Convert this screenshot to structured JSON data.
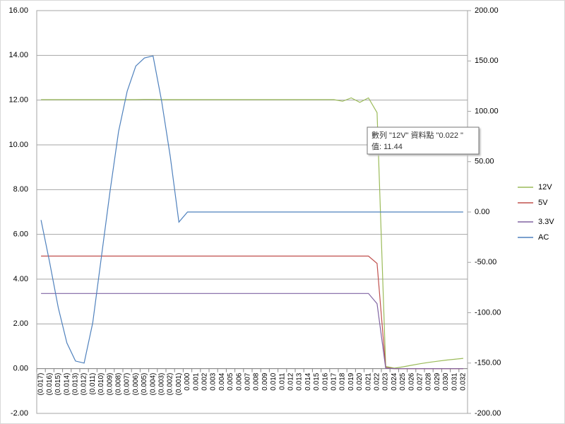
{
  "chart_data": {
    "type": "line",
    "categories": [
      "(0.017)",
      "(0.016)",
      "(0.015)",
      "(0.014)",
      "(0.013)",
      "(0.012)",
      "(0.011)",
      "(0.010)",
      "(0.009)",
      "(0.008)",
      "(0.007)",
      "(0.006)",
      "(0.005)",
      "(0.004)",
      "(0.003)",
      "(0.002)",
      "(0.001)",
      "0.000",
      "0.001",
      "0.002",
      "0.003",
      "0.004",
      "0.005",
      "0.006",
      "0.007",
      "0.008",
      "0.009",
      "0.010",
      "0.011",
      "0.012",
      "0.013",
      "0.014",
      "0.015",
      "0.016",
      "0.017",
      "0.018",
      "0.019",
      "0.020",
      "0.021",
      "0.022",
      "0.023",
      "0.024",
      "0.025",
      "0.026",
      "0.027",
      "0.028",
      "0.029",
      "0.030",
      "0.031",
      "0.032"
    ],
    "series": [
      {
        "name": "12V",
        "color": "#9bbb59",
        "values": [
          12.02,
          12.02,
          12.02,
          12.02,
          12.02,
          12.02,
          12.02,
          12.02,
          12.02,
          12.02,
          12.02,
          12.02,
          12.03,
          12.03,
          12.02,
          12.02,
          12.02,
          12.02,
          12.02,
          12.02,
          12.02,
          12.02,
          12.02,
          12.02,
          12.02,
          12.02,
          12.02,
          12.02,
          12.02,
          12.02,
          12.02,
          12.02,
          12.02,
          12.02,
          12.02,
          11.95,
          12.1,
          11.9,
          12.1,
          11.44,
          0.1,
          0.02,
          0.08,
          0.15,
          0.22,
          0.28,
          0.33,
          0.38,
          0.42,
          0.46
        ]
      },
      {
        "name": "5V",
        "color": "#c0504d",
        "values": [
          5.03,
          5.03,
          5.03,
          5.03,
          5.03,
          5.03,
          5.03,
          5.03,
          5.03,
          5.03,
          5.03,
          5.03,
          5.03,
          5.03,
          5.03,
          5.03,
          5.03,
          5.03,
          5.03,
          5.03,
          5.03,
          5.03,
          5.03,
          5.03,
          5.03,
          5.03,
          5.03,
          5.03,
          5.03,
          5.03,
          5.03,
          5.03,
          5.03,
          5.03,
          5.03,
          5.03,
          5.03,
          5.03,
          5.03,
          4.7,
          0.05,
          0,
          0,
          0,
          0,
          0,
          0,
          0,
          0,
          0
        ]
      },
      {
        "name": "3.3V",
        "color": "#8064a2",
        "values": [
          3.36,
          3.36,
          3.36,
          3.36,
          3.36,
          3.36,
          3.36,
          3.36,
          3.36,
          3.36,
          3.36,
          3.36,
          3.36,
          3.36,
          3.36,
          3.36,
          3.36,
          3.36,
          3.36,
          3.36,
          3.36,
          3.36,
          3.36,
          3.36,
          3.36,
          3.36,
          3.36,
          3.36,
          3.36,
          3.36,
          3.36,
          3.36,
          3.36,
          3.36,
          3.36,
          3.36,
          3.36,
          3.36,
          3.36,
          2.9,
          0.02,
          0,
          0,
          0,
          0,
          0,
          0,
          0,
          0,
          0
        ]
      },
      {
        "name": "AC",
        "color": "#4f81bd",
        "axis": "y2",
        "values": [
          -8,
          -50,
          -95,
          -130,
          -148,
          -150,
          -110,
          -45,
          20,
          80,
          120,
          145,
          153,
          155,
          110,
          55,
          -10,
          0,
          0,
          0,
          0,
          0,
          0,
          0,
          0,
          0,
          0,
          0,
          0,
          0,
          0,
          0,
          0,
          0,
          0,
          0,
          0,
          0,
          0,
          0,
          0,
          0,
          0,
          0,
          0,
          0,
          0,
          0,
          0,
          0
        ]
      }
    ],
    "ylim": [
      -2,
      16
    ],
    "yticks": [
      {
        "value": -2,
        "label": "-2.00"
      },
      {
        "value": 0,
        "label": "0.00"
      },
      {
        "value": 2,
        "label": "2.00"
      },
      {
        "value": 4,
        "label": "4.00"
      },
      {
        "value": 6,
        "label": "6.00"
      },
      {
        "value": 8,
        "label": "8.00"
      },
      {
        "value": 10,
        "label": "10.00"
      },
      {
        "value": 12,
        "label": "12.00"
      },
      {
        "value": 14,
        "label": "14.00"
      },
      {
        "value": 16,
        "label": "16.00"
      }
    ],
    "y2lim": [
      -200,
      200
    ],
    "y2ticks": [
      {
        "value": -200,
        "label": "-200.00"
      },
      {
        "value": -150,
        "label": "-150.00"
      },
      {
        "value": -100,
        "label": "-100.00"
      },
      {
        "value": -50,
        "label": "-50.00"
      },
      {
        "value": 0,
        "label": "0.00"
      },
      {
        "value": 50,
        "label": "50.00"
      },
      {
        "value": 100,
        "label": "100.00"
      },
      {
        "value": 150,
        "label": "150.00"
      },
      {
        "value": 200,
        "label": "200.00"
      }
    ],
    "grid": true,
    "tooltip": [
      "數列 \"12V\" 資料點 \"0.022 \"",
      "值: 11.44"
    ]
  }
}
